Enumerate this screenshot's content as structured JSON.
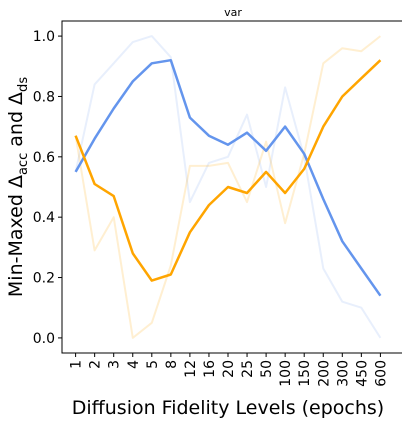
{
  "chart_data": {
    "type": "line",
    "title": "var",
    "xlabel": "Diffusion Fidelity Levels (epochs)",
    "ylabel": "Min-Maxed Δ_acc and Δ_ds",
    "ylabel_parts": {
      "prefix": "Min-Maxed Δ",
      "sub1": "acc",
      "mid": " and Δ",
      "sub2": "ds"
    },
    "categories": [
      "1",
      "2",
      "3",
      "4",
      "5",
      "8",
      "12",
      "16",
      "20",
      "25",
      "50",
      "100",
      "150",
      "200",
      "300",
      "450",
      "600"
    ],
    "ylim": [
      -0.05,
      1.05
    ],
    "yticks": [
      0.0,
      0.2,
      0.4,
      0.6,
      0.8,
      1.0
    ],
    "ytick_labels": [
      "0.0",
      "0.2",
      "0.4",
      "0.6",
      "0.8",
      "1.0"
    ],
    "grid": false,
    "series": [
      {
        "color": "#6495ED",
        "opacity": 0.15,
        "width": 2,
        "values": [
          0.55,
          0.84,
          0.91,
          0.98,
          1.0,
          0.93,
          0.45,
          0.58,
          0.6,
          0.74,
          0.5,
          0.83,
          0.6,
          0.23,
          0.12,
          0.1,
          0.0
        ]
      },
      {
        "color": "#FFA500",
        "opacity": 0.18,
        "width": 2,
        "values": [
          0.67,
          0.29,
          0.4,
          0.0,
          0.05,
          0.24,
          0.57,
          0.57,
          0.58,
          0.45,
          0.65,
          0.38,
          0.61,
          0.91,
          0.96,
          0.95,
          1.0
        ]
      },
      {
        "color": "#6495ED",
        "opacity": 1.0,
        "width": 2.5,
        "values": [
          0.55,
          0.66,
          0.76,
          0.85,
          0.91,
          0.92,
          0.73,
          0.67,
          0.64,
          0.68,
          0.62,
          0.7,
          0.61,
          0.46,
          0.32,
          0.23,
          0.14
        ]
      },
      {
        "color": "#FFA500",
        "opacity": 1.0,
        "width": 2.5,
        "values": [
          0.67,
          0.51,
          0.47,
          0.28,
          0.19,
          0.21,
          0.35,
          0.44,
          0.5,
          0.48,
          0.55,
          0.48,
          0.56,
          0.7,
          0.8,
          0.86,
          0.92
        ]
      }
    ]
  }
}
